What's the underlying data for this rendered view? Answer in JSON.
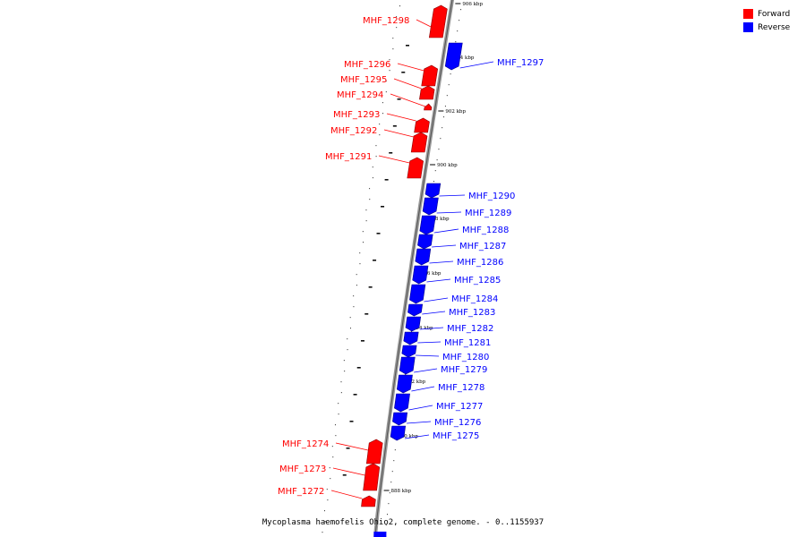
{
  "legend": [
    {
      "label": "Forward",
      "color": "#ff0000"
    },
    {
      "label": "Reverse",
      "color": "#0000ff"
    }
  ],
  "caption": "Mycoplasma haemofelis Ohio2, complete genome. - 0..1155937",
  "colors": {
    "forward": "#ff0000",
    "reverse": "#0000ff",
    "backbone": "#888888"
  },
  "ruler": [
    {
      "label": "906 kbp",
      "pos": 906
    },
    {
      "label": "904 kbp",
      "pos": 904
    },
    {
      "label": "902 kbp",
      "pos": 902
    },
    {
      "label": "900 kbp",
      "pos": 900
    },
    {
      "label": "898 kbp",
      "pos": 898
    },
    {
      "label": "896 kbp",
      "pos": 896
    },
    {
      "label": "894 kbp",
      "pos": 894
    },
    {
      "label": "892 kbp",
      "pos": 892
    },
    {
      "label": "890 kbp",
      "pos": 890
    },
    {
      "label": "888 kbp",
      "pos": 888
    }
  ],
  "genes": [
    {
      "name": "MHF_1298",
      "strand": "forward"
    },
    {
      "name": "MHF_1297",
      "strand": "reverse"
    },
    {
      "name": "MHF_1296",
      "strand": "forward"
    },
    {
      "name": "MHF_1295",
      "strand": "forward"
    },
    {
      "name": "MHF_1294",
      "strand": "forward"
    },
    {
      "name": "MHF_1293",
      "strand": "forward"
    },
    {
      "name": "MHF_1292",
      "strand": "forward"
    },
    {
      "name": "MHF_1291",
      "strand": "forward"
    },
    {
      "name": "MHF_1290",
      "strand": "reverse"
    },
    {
      "name": "MHF_1289",
      "strand": "reverse"
    },
    {
      "name": "MHF_1288",
      "strand": "reverse"
    },
    {
      "name": "MHF_1287",
      "strand": "reverse"
    },
    {
      "name": "MHF_1286",
      "strand": "reverse"
    },
    {
      "name": "MHF_1285",
      "strand": "reverse"
    },
    {
      "name": "MHF_1284",
      "strand": "reverse"
    },
    {
      "name": "MHF_1283",
      "strand": "reverse"
    },
    {
      "name": "MHF_1282",
      "strand": "reverse"
    },
    {
      "name": "MHF_1281",
      "strand": "reverse"
    },
    {
      "name": "MHF_1280",
      "strand": "reverse"
    },
    {
      "name": "MHF_1279",
      "strand": "reverse"
    },
    {
      "name": "MHF_1278",
      "strand": "reverse"
    },
    {
      "name": "MHF_1277",
      "strand": "reverse"
    },
    {
      "name": "MHF_1276",
      "strand": "reverse"
    },
    {
      "name": "MHF_1275",
      "strand": "reverse"
    },
    {
      "name": "MHF_1274",
      "strand": "forward"
    },
    {
      "name": "MHF_1273",
      "strand": "forward"
    },
    {
      "name": "MHF_1272",
      "strand": "forward"
    }
  ]
}
